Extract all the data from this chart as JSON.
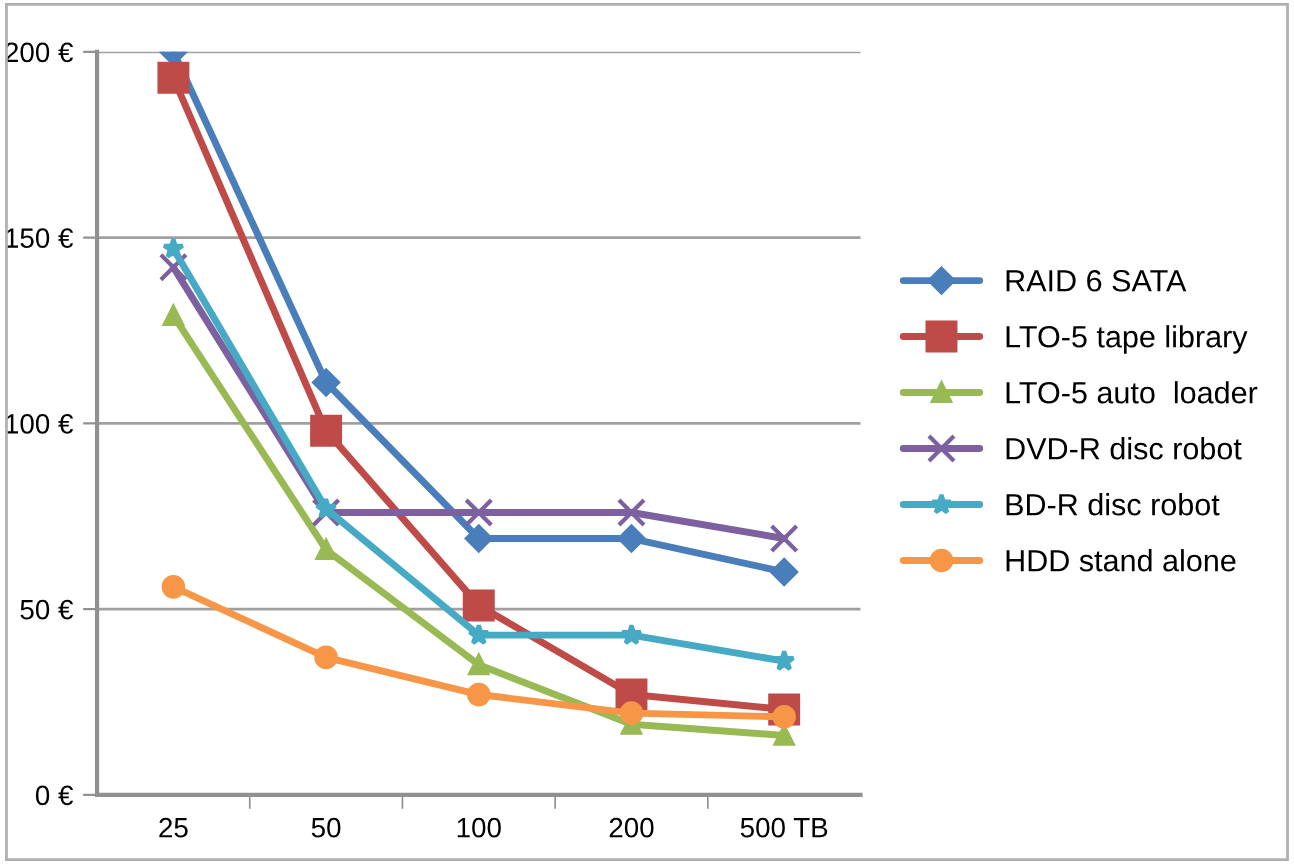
{
  "chart_data": {
    "type": "line",
    "categories": [
      "25",
      "50",
      "100",
      "200",
      "500 TB"
    ],
    "ylim": [
      0,
      200
    ],
    "yticks": [
      {
        "value": 0,
        "label": "0 €"
      },
      {
        "value": 50,
        "label": "50 €"
      },
      {
        "value": 100,
        "label": "100 €"
      },
      {
        "value": 150,
        "label": "150 €"
      },
      {
        "value": 200,
        "label": "200 €"
      }
    ],
    "grid": "y",
    "legend": "right",
    "series": [
      {
        "name": "RAID 6 SATA",
        "color": "#4a7ebb",
        "marker": "diamond",
        "values": [
          200,
          111,
          69,
          69,
          60
        ]
      },
      {
        "name": "LTO-5 tape library",
        "color": "#be4b48",
        "marker": "square",
        "values": [
          193,
          98,
          51,
          27,
          23
        ]
      },
      {
        "name": "LTO-5 auto  loader",
        "color": "#98b954",
        "marker": "triangle",
        "values": [
          129,
          66,
          35,
          19,
          16
        ]
      },
      {
        "name": "DVD-R disc robot",
        "color": "#7d60a0",
        "marker": "cross",
        "values": [
          142,
          76,
          76,
          76,
          69
        ]
      },
      {
        "name": "BD-R disc robot",
        "color": "#46aac5",
        "marker": "star",
        "values": [
          147,
          77,
          43,
          43,
          36
        ]
      },
      {
        "name": "HDD stand alone",
        "color": "#f79646",
        "marker": "circle",
        "values": [
          56,
          37,
          27,
          22,
          21
        ]
      }
    ]
  }
}
